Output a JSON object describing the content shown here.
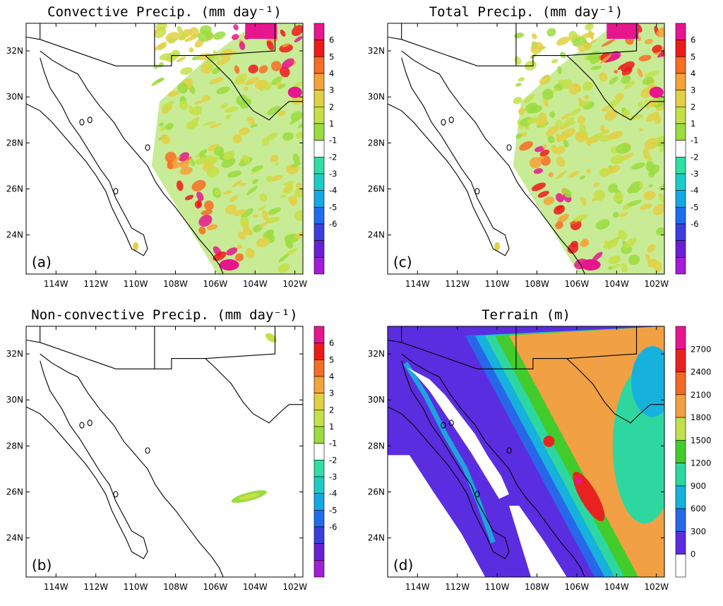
{
  "panels": [
    {
      "id": "a",
      "title": "Convective Precip. (mm day⁻¹)",
      "label": "(a)",
      "field": "conv"
    },
    {
      "id": "c",
      "title": "Total Precip. (mm day⁻¹)",
      "label": "(c)",
      "field": "total"
    },
    {
      "id": "b",
      "title": "Non-convective Precip. (mm day⁻¹)",
      "label": "(b)",
      "field": "nonconv"
    },
    {
      "id": "d",
      "title": "Terrain (m)",
      "label": "(d)",
      "field": "terrain"
    }
  ],
  "axes": {
    "lon_labels": [
      "114W",
      "112W",
      "110W",
      "108W",
      "106W",
      "104W",
      "102W"
    ],
    "lat_labels": [
      "24N",
      "26N",
      "28N",
      "30N",
      "32N"
    ]
  },
  "precip_colorbar": {
    "labels": [
      "6",
      "5",
      "4",
      "3",
      "2",
      "1",
      "-1",
      "-2",
      "-3",
      "-4",
      "-5",
      "-6"
    ],
    "colors": [
      "#e8168e",
      "#ee1a1a",
      "#f66d24",
      "#f4a23a",
      "#e3cf44",
      "#c5e148",
      "#9bdc3f",
      "#ffffff",
      "#2ee0a2",
      "#1ccdc6",
      "#14a8e6",
      "#1f6ded",
      "#3d3ee0",
      "#6a1fd7",
      "#a31cd8"
    ]
  },
  "terrain_colorbar": {
    "labels": [
      "2700",
      "2400",
      "2100",
      "1800",
      "1500",
      "1200",
      "900",
      "600",
      "300",
      "0"
    ],
    "colors": [
      "#e8168e",
      "#e8231f",
      "#f26827",
      "#f2a044",
      "#c1e04d",
      "#42cc2c",
      "#2ed7a0",
      "#17b1dd",
      "#2768e8",
      "#5a2de0",
      "#ffffff"
    ]
  }
}
